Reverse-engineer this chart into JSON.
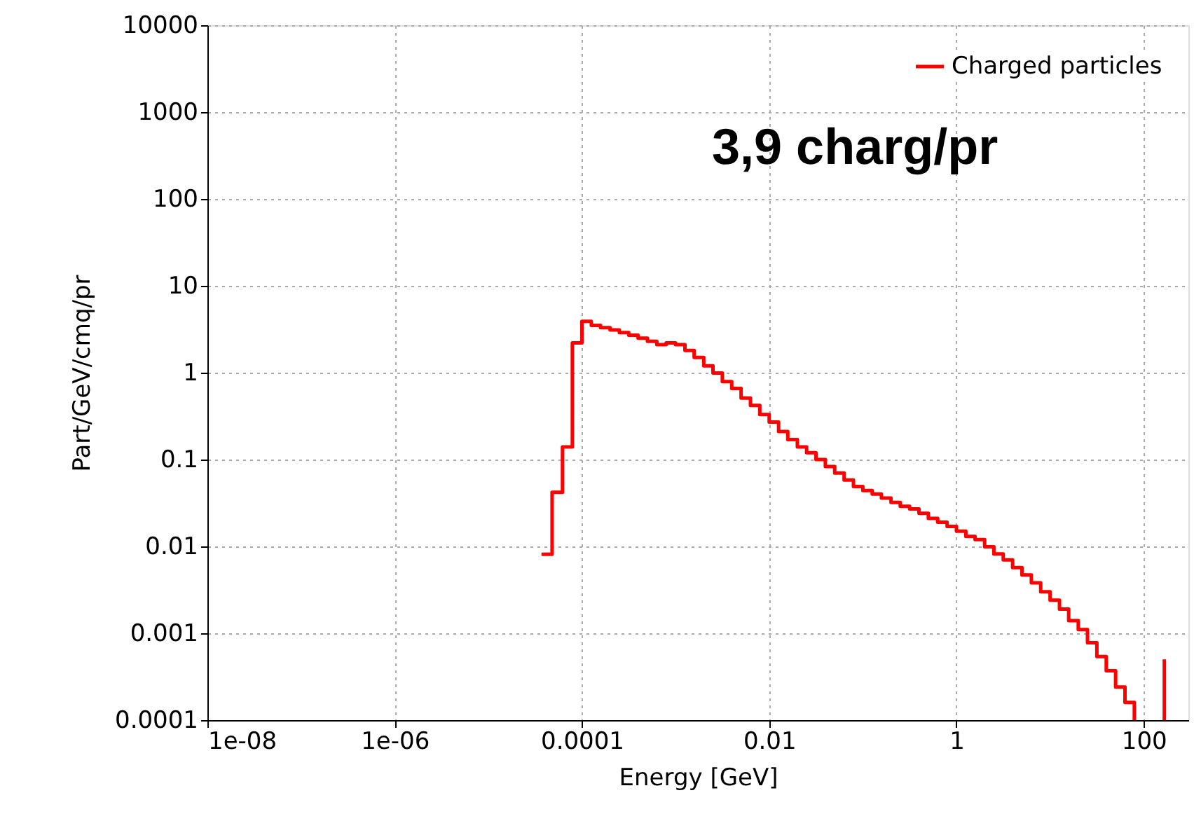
{
  "chart_data": {
    "type": "step",
    "xlabel": "Energy [GeV]",
    "ylabel": "Part/GeV/cmq/pr",
    "annotations": [
      "3,9  charg/pr"
    ],
    "log": "xy",
    "grid": true,
    "legend": "top right",
    "line_style": "solid",
    "marker": "none",
    "xlim": [
      1e-08,
      300
    ],
    "xticks": [
      {
        "value": 1e-08,
        "label": "1e-08"
      },
      {
        "value": 1e-06,
        "label": "1e-06"
      },
      0.0001,
      0.01,
      1,
      100
    ],
    "ylim": [
      0.0001,
      10000
    ],
    "yticks": [
      0.0001,
      0.001,
      0.01,
      0.1,
      1,
      10,
      100,
      1000,
      10000
    ],
    "series": [
      {
        "name": "Charged particles",
        "color": "#ff0000",
        "x": [
          3.7e-05,
          4.8e-05,
          6.2e-05,
          7.9e-05,
          0.0001,
          0.000126,
          0.000158,
          0.0002,
          0.000251,
          0.000316,
          0.000398,
          0.000501,
          0.000631,
          0.000794,
          0.001,
          0.00126,
          0.00158,
          0.002,
          0.00251,
          0.00316,
          0.00398,
          0.00501,
          0.00631,
          0.00794,
          0.01,
          0.0126,
          0.0158,
          0.02,
          0.0251,
          0.0316,
          0.0398,
          0.0501,
          0.0631,
          0.0794,
          0.1,
          0.126,
          0.158,
          0.2,
          0.251,
          0.316,
          0.398,
          0.501,
          0.631,
          0.794,
          1,
          1.26,
          1.58,
          2,
          2.51,
          3.16,
          3.98,
          5.01,
          6.31,
          7.94,
          10,
          12.6,
          15.8,
          20,
          25.1,
          31.6,
          39.8,
          50.1,
          63.1,
          79.4,
          120,
          166,
          166
        ],
        "values": [
          0.0081,
          0.042,
          0.14,
          2.2,
          3.9,
          3.5,
          3.3,
          3.1,
          2.9,
          2.7,
          2.5,
          2.3,
          2.1,
          2.2,
          2.1,
          1.8,
          1.5,
          1.2,
          0.99,
          0.79,
          0.66,
          0.51,
          0.42,
          0.33,
          0.27,
          0.21,
          0.17,
          0.14,
          0.12,
          0.1,
          0.083,
          0.07,
          0.058,
          0.049,
          0.044,
          0.04,
          0.036,
          0.032,
          0.029,
          0.027,
          0.024,
          0.021,
          0.019,
          0.017,
          0.015,
          0.013,
          0.012,
          0.0099,
          0.0082,
          0.007,
          0.0057,
          0.0047,
          0.0038,
          0.003,
          0.0024,
          0.0019,
          0.0014,
          0.0011,
          0.00078,
          0.00054,
          0.00037,
          0.00024,
          0.00016,
          0.0001,
          null,
          0.0001,
          0.0005
        ]
      }
    ]
  }
}
